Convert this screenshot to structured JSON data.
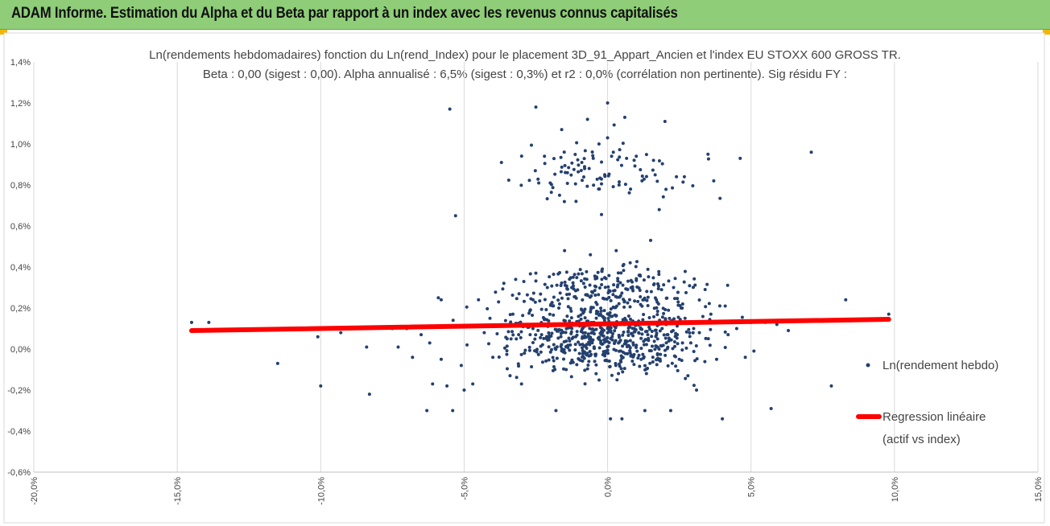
{
  "header": {
    "title": "ADAM Informe. Estimation du Alpha et du Beta par rapport à un index avec les revenus connus capitalisés",
    "accent_color": "#8fcd78",
    "corner_color": "#f2b600"
  },
  "chart_data": {
    "type": "scatter",
    "title_lines": [
      "Ln(rendements hebdomadaires) fonction du Ln(rend_Index) pour le placement 3D_91_Appart_Ancien et l'index EU STOXX 600 GROSS TR.",
      "Beta : 0,00 (sigest : 0,00). Alpha annualisé : 6,5% (sigest : 0,3%) et r2 : 0,0% (corrélation non pertinente). Sig résidu FY :"
    ],
    "xlabel": "",
    "ylabel": "",
    "xlim": [
      -20,
      15
    ],
    "ylim": [
      -0.6,
      1.4
    ],
    "x_ticks": [
      -20,
      -15,
      -10,
      -5,
      0,
      5,
      10,
      15
    ],
    "x_tick_labels": [
      "-20,0%",
      "-15,0%",
      "-10,0%",
      "-5,0%",
      "0,0%",
      "5,0%",
      "10,0%",
      "15,0%"
    ],
    "y_ticks": [
      -0.6,
      -0.4,
      -0.2,
      0,
      0.2,
      0.4,
      0.6,
      0.8,
      1.0,
      1.2,
      1.4
    ],
    "y_tick_labels": [
      "-0,6%",
      "-0,4%",
      "-0,2%",
      "0,0%",
      "0,2%",
      "0,4%",
      "0,6%",
      "0,8%",
      "1,0%",
      "1,2%",
      "1,4%"
    ],
    "grid": "vertical",
    "legend_position": "right",
    "series": [
      {
        "name": "Ln(rendement hebdo)",
        "kind": "points",
        "color": "#24406e",
        "points": [
          [
            -14.5,
            0.13
          ],
          [
            -13.9,
            0.13
          ],
          [
            -11.5,
            -0.07
          ],
          [
            -10.1,
            0.06
          ],
          [
            -10.0,
            -0.18
          ],
          [
            -9.3,
            0.08
          ],
          [
            -8.4,
            0.01
          ],
          [
            -8.3,
            -0.22
          ],
          [
            -7.5,
            0.1
          ],
          [
            -7.3,
            0.01
          ],
          [
            -7.0,
            0.1
          ],
          [
            -6.8,
            -0.04
          ],
          [
            -6.5,
            0.07
          ],
          [
            -6.3,
            -0.3
          ],
          [
            -6.2,
            0.03
          ],
          [
            -6.1,
            -0.17
          ],
          [
            -5.9,
            0.25
          ],
          [
            -5.8,
            0.24
          ],
          [
            -5.8,
            -0.05
          ],
          [
            -5.6,
            -0.18
          ],
          [
            -5.5,
            1.17
          ],
          [
            -5.4,
            -0.3
          ],
          [
            -5.3,
            0.65
          ],
          [
            -5.2,
            0.11
          ],
          [
            -5.1,
            -0.08
          ],
          [
            -5.0,
            -0.2
          ],
          [
            -4.9,
            0.02
          ],
          [
            -4.7,
            -0.17
          ],
          [
            -4.5,
            0.24
          ],
          [
            -4.3,
            0.08
          ],
          [
            -4.1,
            0.15
          ],
          [
            -4.0,
            -0.04
          ],
          [
            -3.8,
            0.23
          ],
          [
            -3.7,
            0.91
          ],
          [
            -3.5,
            0.05
          ],
          [
            -3.4,
            -0.13
          ],
          [
            -3.3,
            0.17
          ],
          [
            -3.1,
            0.07
          ],
          [
            -3.0,
            -0.17
          ],
          [
            -2.9,
            -0.02
          ],
          [
            -2.8,
            0.12
          ],
          [
            -2.7,
            0.07
          ],
          [
            -2.6,
            0.24
          ],
          [
            -2.5,
            1.18
          ],
          [
            -2.5,
            0.37
          ],
          [
            -2.4,
            0.81
          ],
          [
            -2.3,
            0.07
          ],
          [
            -2.2,
            0.94
          ],
          [
            -2.1,
            0.3
          ],
          [
            -2.0,
            0.81
          ],
          [
            -1.9,
            0.12
          ],
          [
            -1.8,
            -0.3
          ],
          [
            -1.7,
            0.2
          ],
          [
            -1.6,
            1.07
          ],
          [
            -1.5,
            0.48
          ],
          [
            -1.4,
            0.86
          ],
          [
            -1.3,
            0.02
          ],
          [
            -1.2,
            0.35
          ],
          [
            -1.1,
            0.72
          ],
          [
            -1.0,
            -0.05
          ],
          [
            -0.9,
            0.19
          ],
          [
            -0.8,
            0.88
          ],
          [
            -0.7,
            1.12
          ],
          [
            -0.6,
            0.46
          ],
          [
            -0.5,
            0.93
          ],
          [
            -0.4,
            -0.12
          ],
          [
            -0.3,
            1.0
          ],
          [
            -0.2,
            0.34
          ],
          [
            -0.1,
            0.85
          ],
          [
            0.0,
            1.2
          ],
          [
            0.0,
            0.1
          ],
          [
            0.1,
            -0.34
          ],
          [
            0.2,
            0.96
          ],
          [
            0.3,
            0.48
          ],
          [
            0.4,
            0.8
          ],
          [
            0.5,
            -0.34
          ],
          [
            0.6,
            1.13
          ],
          [
            0.7,
            0.29
          ],
          [
            0.8,
            0.78
          ],
          [
            0.9,
            0.02
          ],
          [
            1.0,
            0.94
          ],
          [
            1.1,
            0.36
          ],
          [
            1.2,
            0.82
          ],
          [
            1.3,
            -0.3
          ],
          [
            1.4,
            0.07
          ],
          [
            1.5,
            0.53
          ],
          [
            1.6,
            0.92
          ],
          [
            1.7,
            0.24
          ],
          [
            1.8,
            0.68
          ],
          [
            1.9,
            0.1
          ],
          [
            2.0,
            1.11
          ],
          [
            2.1,
            0.07
          ],
          [
            2.2,
            -0.3
          ],
          [
            2.3,
            0.3
          ],
          [
            2.4,
            0.84
          ],
          [
            2.5,
            -0.05
          ],
          [
            2.6,
            0.2
          ],
          [
            2.7,
            0.15
          ],
          [
            2.8,
            -0.13
          ],
          [
            2.9,
            0.03
          ],
          [
            3.0,
            0.1
          ],
          [
            3.1,
            -0.2
          ],
          [
            3.2,
            0.08
          ],
          [
            3.4,
            0.29
          ],
          [
            3.5,
            0.95
          ],
          [
            3.6,
            0.17
          ],
          [
            3.7,
            0.82
          ],
          [
            3.8,
            -0.05
          ],
          [
            4.0,
            -0.34
          ],
          [
            4.1,
            0.21
          ],
          [
            4.2,
            0.07
          ],
          [
            4.5,
            0.1
          ],
          [
            4.8,
            -0.04
          ],
          [
            5.0,
            0.13
          ],
          [
            5.1,
            -0.01
          ],
          [
            5.5,
            0.13
          ],
          [
            5.7,
            -0.29
          ],
          [
            5.9,
            0.12
          ],
          [
            6.3,
            0.09
          ],
          [
            7.1,
            0.96
          ],
          [
            7.8,
            -0.18
          ],
          [
            8.3,
            0.24
          ],
          [
            9.8,
            0.17
          ]
        ]
      },
      {
        "name": "Regression linéaire (actif vs index)",
        "kind": "line",
        "color": "#ff0000",
        "points": [
          [
            -14.5,
            0.09
          ],
          [
            9.8,
            0.145
          ]
        ]
      }
    ],
    "legend": {
      "items": [
        {
          "label_lines": [
            "Ln(rendement hebdo)"
          ],
          "color": "#24406e",
          "kind": "point"
        },
        {
          "label_lines": [
            "Regression linéaire",
            "(actif vs index)"
          ],
          "color": "#ff0000",
          "kind": "line"
        }
      ]
    }
  }
}
